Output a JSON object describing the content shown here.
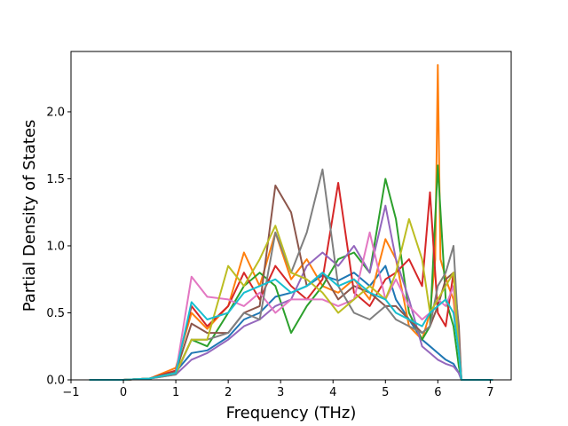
{
  "chart_data": {
    "type": "line",
    "title": "",
    "xlabel": "Frequency (THz)",
    "ylabel": "Partial Density of States",
    "xlim": [
      -1.0,
      7.4
    ],
    "ylim": [
      0.0,
      2.45
    ],
    "xticks": [
      -1,
      0,
      1,
      2,
      3,
      4,
      5,
      6,
      7
    ],
    "xtick_labels": [
      "−1",
      "0",
      "1",
      "2",
      "3",
      "4",
      "5",
      "6",
      "7"
    ],
    "yticks": [
      0.0,
      0.5,
      1.0,
      1.5,
      2.0
    ],
    "ytick_labels": [
      "0.0",
      "0.5",
      "1.0",
      "1.5",
      "2.0"
    ],
    "grid": false,
    "legend": "none",
    "series": [
      {
        "color": "#1f77b4",
        "x": [
          -0.65,
          0,
          0.5,
          1.0,
          1.3,
          1.6,
          2.0,
          2.3,
          2.6,
          2.9,
          3.2,
          3.5,
          3.8,
          4.1,
          4.4,
          4.7,
          5.0,
          5.2,
          5.45,
          5.7,
          5.85,
          6.0,
          6.15,
          6.3,
          6.4,
          6.45,
          7.05
        ],
        "y": [
          0,
          0,
          0.01,
          0.06,
          0.2,
          0.22,
          0.32,
          0.45,
          0.5,
          0.62,
          0.65,
          0.7,
          0.78,
          0.74,
          0.8,
          0.7,
          0.85,
          0.6,
          0.45,
          0.3,
          0.25,
          0.2,
          0.15,
          0.12,
          0.05,
          0,
          0
        ]
      },
      {
        "color": "#ff7f0e",
        "x": [
          -0.65,
          0,
          0.5,
          1.0,
          1.3,
          1.6,
          2.0,
          2.3,
          2.6,
          2.9,
          3.2,
          3.5,
          3.8,
          4.1,
          4.4,
          4.7,
          5.0,
          5.2,
          5.45,
          5.7,
          5.85,
          5.95,
          6.0,
          6.05,
          6.2,
          6.3,
          6.4,
          6.45,
          7.05
        ],
        "y": [
          0,
          0,
          0.01,
          0.09,
          0.5,
          0.38,
          0.55,
          0.95,
          0.7,
          1.1,
          0.75,
          0.9,
          0.7,
          0.65,
          0.75,
          0.6,
          1.05,
          0.9,
          0.4,
          0.3,
          0.5,
          0.9,
          2.35,
          0.9,
          0.7,
          0.6,
          0.2,
          0,
          0
        ]
      },
      {
        "color": "#2ca02c",
        "x": [
          -0.65,
          0,
          0.5,
          1.0,
          1.3,
          1.6,
          2.0,
          2.3,
          2.6,
          2.9,
          3.2,
          3.5,
          3.8,
          4.1,
          4.4,
          4.7,
          5.0,
          5.2,
          5.45,
          5.7,
          5.85,
          6.0,
          6.15,
          6.3,
          6.4,
          6.45,
          7.05
        ],
        "y": [
          0,
          0,
          0.01,
          0.05,
          0.3,
          0.25,
          0.5,
          0.7,
          0.8,
          0.7,
          0.35,
          0.55,
          0.7,
          0.9,
          0.95,
          0.8,
          1.5,
          1.2,
          0.5,
          0.3,
          0.4,
          1.6,
          0.6,
          0.4,
          0.1,
          0,
          0
        ]
      },
      {
        "color": "#d62728",
        "x": [
          -0.65,
          0,
          0.5,
          1.0,
          1.3,
          1.6,
          2.0,
          2.3,
          2.6,
          2.9,
          3.2,
          3.5,
          3.8,
          4.1,
          4.4,
          4.7,
          5.0,
          5.2,
          5.45,
          5.7,
          5.85,
          6.0,
          6.15,
          6.3,
          6.4,
          6.45,
          7.05
        ],
        "y": [
          0,
          0,
          0.01,
          0.07,
          0.55,
          0.4,
          0.55,
          0.8,
          0.6,
          0.85,
          0.7,
          0.6,
          0.75,
          1.47,
          0.65,
          0.55,
          0.75,
          0.8,
          0.9,
          0.7,
          1.4,
          0.5,
          0.4,
          0.8,
          0.3,
          0,
          0
        ]
      },
      {
        "color": "#9467bd",
        "x": [
          -0.65,
          0,
          0.5,
          1.0,
          1.3,
          1.6,
          2.0,
          2.3,
          2.6,
          2.9,
          3.2,
          3.5,
          3.8,
          4.1,
          4.4,
          4.7,
          5.0,
          5.2,
          5.45,
          5.7,
          5.85,
          6.0,
          6.15,
          6.3,
          6.4,
          6.45,
          7.05
        ],
        "y": [
          0,
          0,
          0.01,
          0.04,
          0.15,
          0.2,
          0.3,
          0.4,
          0.45,
          0.55,
          0.6,
          0.85,
          0.95,
          0.85,
          1.0,
          0.8,
          1.3,
          0.9,
          0.6,
          0.25,
          0.2,
          0.15,
          0.12,
          0.1,
          0.05,
          0,
          0
        ]
      },
      {
        "color": "#8c564b",
        "x": [
          -0.65,
          0,
          0.5,
          1.0,
          1.3,
          1.6,
          2.0,
          2.3,
          2.6,
          2.9,
          3.2,
          3.5,
          3.8,
          4.1,
          4.4,
          4.7,
          5.0,
          5.2,
          5.45,
          5.7,
          5.85,
          6.0,
          6.15,
          6.3,
          6.4,
          6.45,
          7.05
        ],
        "y": [
          0,
          0,
          0.01,
          0.06,
          0.42,
          0.35,
          0.35,
          0.5,
          0.55,
          1.45,
          1.25,
          0.7,
          0.8,
          0.6,
          0.7,
          0.65,
          0.55,
          0.55,
          0.45,
          0.35,
          0.4,
          0.55,
          0.75,
          0.8,
          0.4,
          0,
          0
        ]
      },
      {
        "color": "#e377c2",
        "x": [
          -0.65,
          0,
          0.5,
          1.0,
          1.3,
          1.6,
          2.0,
          2.3,
          2.6,
          2.9,
          3.2,
          3.5,
          3.8,
          4.1,
          4.4,
          4.7,
          5.0,
          5.2,
          5.45,
          5.7,
          5.85,
          6.0,
          6.15,
          6.3,
          6.4,
          6.45,
          7.05
        ],
        "y": [
          0,
          0,
          0.01,
          0.05,
          0.77,
          0.62,
          0.6,
          0.55,
          0.65,
          0.5,
          0.6,
          0.6,
          0.6,
          0.55,
          0.6,
          1.1,
          0.6,
          0.75,
          0.55,
          0.45,
          0.5,
          0.6,
          0.55,
          0.7,
          0.2,
          0,
          0
        ]
      },
      {
        "color": "#7f7f7f",
        "x": [
          -0.65,
          0,
          0.5,
          1.0,
          1.3,
          1.6,
          2.0,
          2.3,
          2.6,
          2.9,
          3.2,
          3.5,
          3.8,
          4.1,
          4.4,
          4.7,
          5.0,
          5.2,
          5.45,
          5.7,
          5.85,
          6.0,
          6.15,
          6.3,
          6.4,
          6.45,
          7.05
        ],
        "y": [
          0,
          0,
          0.01,
          0.04,
          0.3,
          0.3,
          0.35,
          0.5,
          0.45,
          1.1,
          0.8,
          1.1,
          1.57,
          0.7,
          0.5,
          0.45,
          0.55,
          0.45,
          0.4,
          0.35,
          0.4,
          0.7,
          0.8,
          1.0,
          0.3,
          0,
          0
        ]
      },
      {
        "color": "#bcbd22",
        "x": [
          -0.65,
          0,
          0.5,
          1.0,
          1.3,
          1.6,
          2.0,
          2.3,
          2.6,
          2.9,
          3.2,
          3.5,
          3.8,
          4.1,
          4.4,
          4.7,
          5.0,
          5.2,
          5.45,
          5.7,
          5.85,
          6.0,
          6.15,
          6.3,
          6.4,
          6.45,
          7.05
        ],
        "y": [
          0,
          0,
          0.01,
          0.05,
          0.3,
          0.3,
          0.85,
          0.7,
          0.9,
          1.15,
          0.8,
          0.75,
          0.65,
          0.5,
          0.6,
          0.7,
          0.6,
          0.8,
          1.2,
          0.9,
          0.5,
          0.6,
          0.7,
          0.8,
          0.2,
          0,
          0
        ]
      },
      {
        "color": "#17becf",
        "x": [
          -0.65,
          0,
          0.5,
          1.0,
          1.3,
          1.6,
          2.0,
          2.3,
          2.6,
          2.9,
          3.2,
          3.5,
          3.8,
          4.1,
          4.4,
          4.7,
          5.0,
          5.2,
          5.45,
          5.7,
          5.85,
          6.0,
          6.15,
          6.3,
          6.4,
          6.45,
          7.05
        ],
        "y": [
          0,
          0,
          0.01,
          0.05,
          0.58,
          0.45,
          0.5,
          0.65,
          0.7,
          0.75,
          0.65,
          0.7,
          0.8,
          0.7,
          0.75,
          0.65,
          0.6,
          0.5,
          0.45,
          0.4,
          0.5,
          0.55,
          0.6,
          0.5,
          0.2,
          0,
          0
        ]
      }
    ]
  }
}
